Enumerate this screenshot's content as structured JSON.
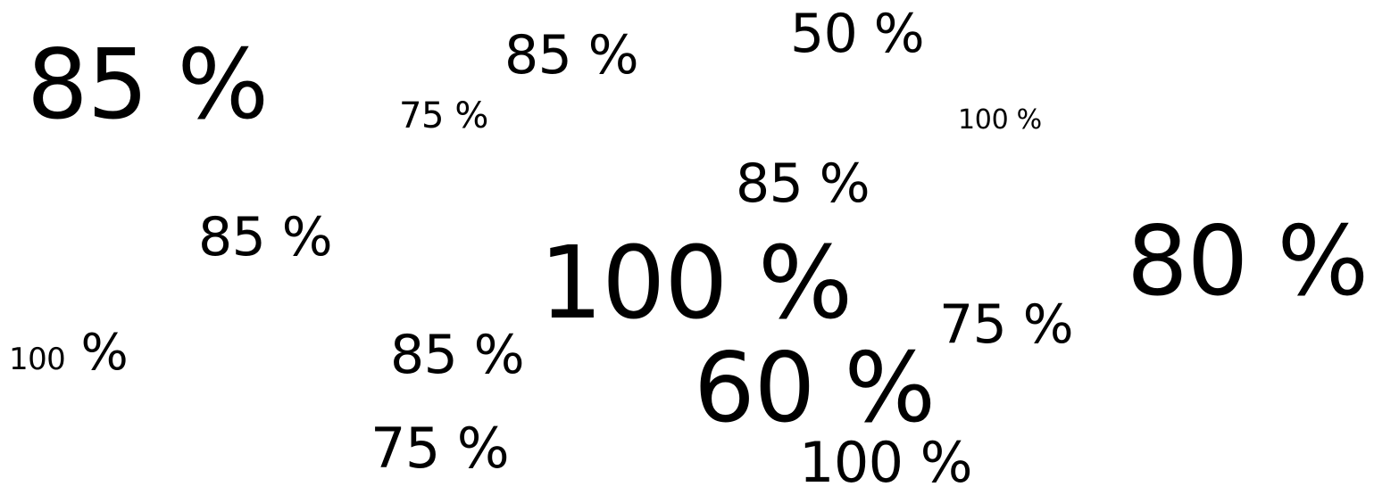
{
  "words": [
    "85 %",
    "75 %",
    "85 %",
    "50 %",
    "100 %",
    "85 %",
    "85 %",
    "100 %",
    "80 %",
    "75 %",
    "100",
    "%",
    "85 %",
    "60 %",
    "75 %",
    "100 %"
  ]
}
